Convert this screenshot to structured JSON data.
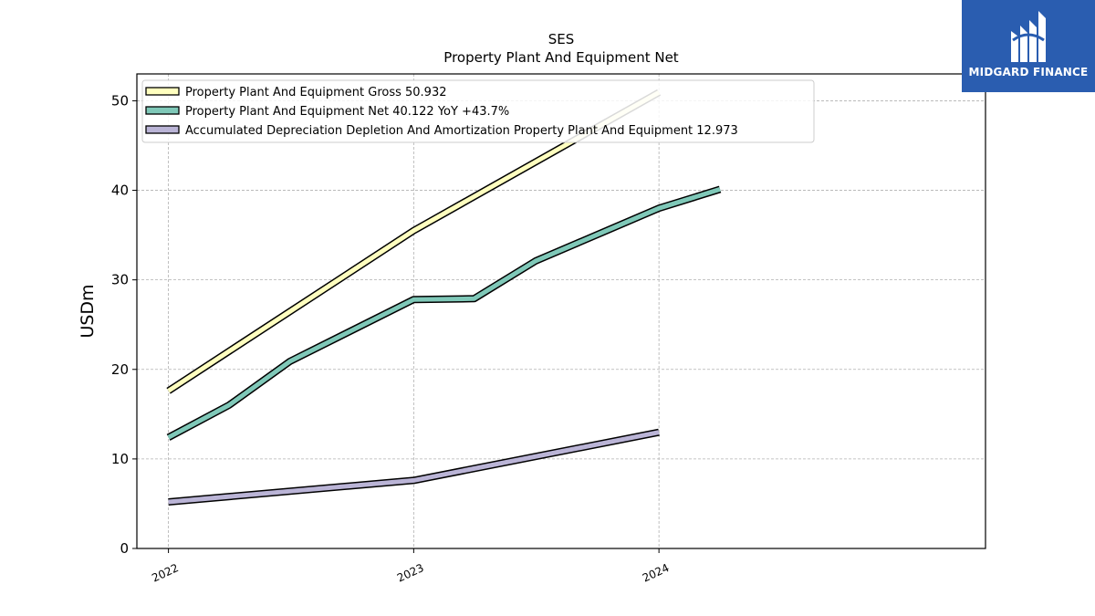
{
  "chart_data": {
    "type": "line",
    "title": "SES",
    "subtitle": "Property Plant And Equipment Net",
    "ylabel": "USDm",
    "xlabel": "",
    "x_ticks": [
      "2022",
      "2023",
      "2024"
    ],
    "ylim": [
      0,
      53
    ],
    "y_ticks": [
      0,
      10,
      20,
      30,
      40,
      50
    ],
    "xlim": [
      "2021-11-15",
      "2025-05-01"
    ],
    "grid": true,
    "legend_position": "top-left",
    "series": [
      {
        "name": "Property Plant And Equipment Gross",
        "legend_label": "Property Plant And Equipment Gross  50.932",
        "color": "#ffffbf",
        "points": [
          {
            "x": "2022-01-01",
            "y": 17.6
          },
          {
            "x": "2023-01-01",
            "y": 35.5
          },
          {
            "x": "2024-01-01",
            "y": 50.93
          }
        ]
      },
      {
        "name": "Property Plant And Equipment Net",
        "legend_label": "Property Plant And Equipment Net  40.122 YoY +43.7%",
        "color": "#7fc8b8",
        "points": [
          {
            "x": "2022-01-01",
            "y": 12.4
          },
          {
            "x": "2022-04-01",
            "y": 16.0
          },
          {
            "x": "2022-07-01",
            "y": 20.9
          },
          {
            "x": "2023-01-01",
            "y": 27.8
          },
          {
            "x": "2023-04-01",
            "y": 27.9
          },
          {
            "x": "2023-07-01",
            "y": 32.1
          },
          {
            "x": "2024-01-01",
            "y": 38.0
          },
          {
            "x": "2024-04-01",
            "y": 40.12
          }
        ]
      },
      {
        "name": "Accumulated Depreciation Depletion And Amortization Property Plant And Equipment",
        "legend_label": "Accumulated Depreciation Depletion And Amortization Property Plant And Equipment  12.973",
        "color": "#bab4d6",
        "points": [
          {
            "x": "2022-01-01",
            "y": 5.2
          },
          {
            "x": "2023-01-01",
            "y": 7.6
          },
          {
            "x": "2024-01-01",
            "y": 12.97
          }
        ]
      }
    ]
  },
  "logo": {
    "text": "MIDGARD FINANCE",
    "color": "#2a5db0"
  }
}
